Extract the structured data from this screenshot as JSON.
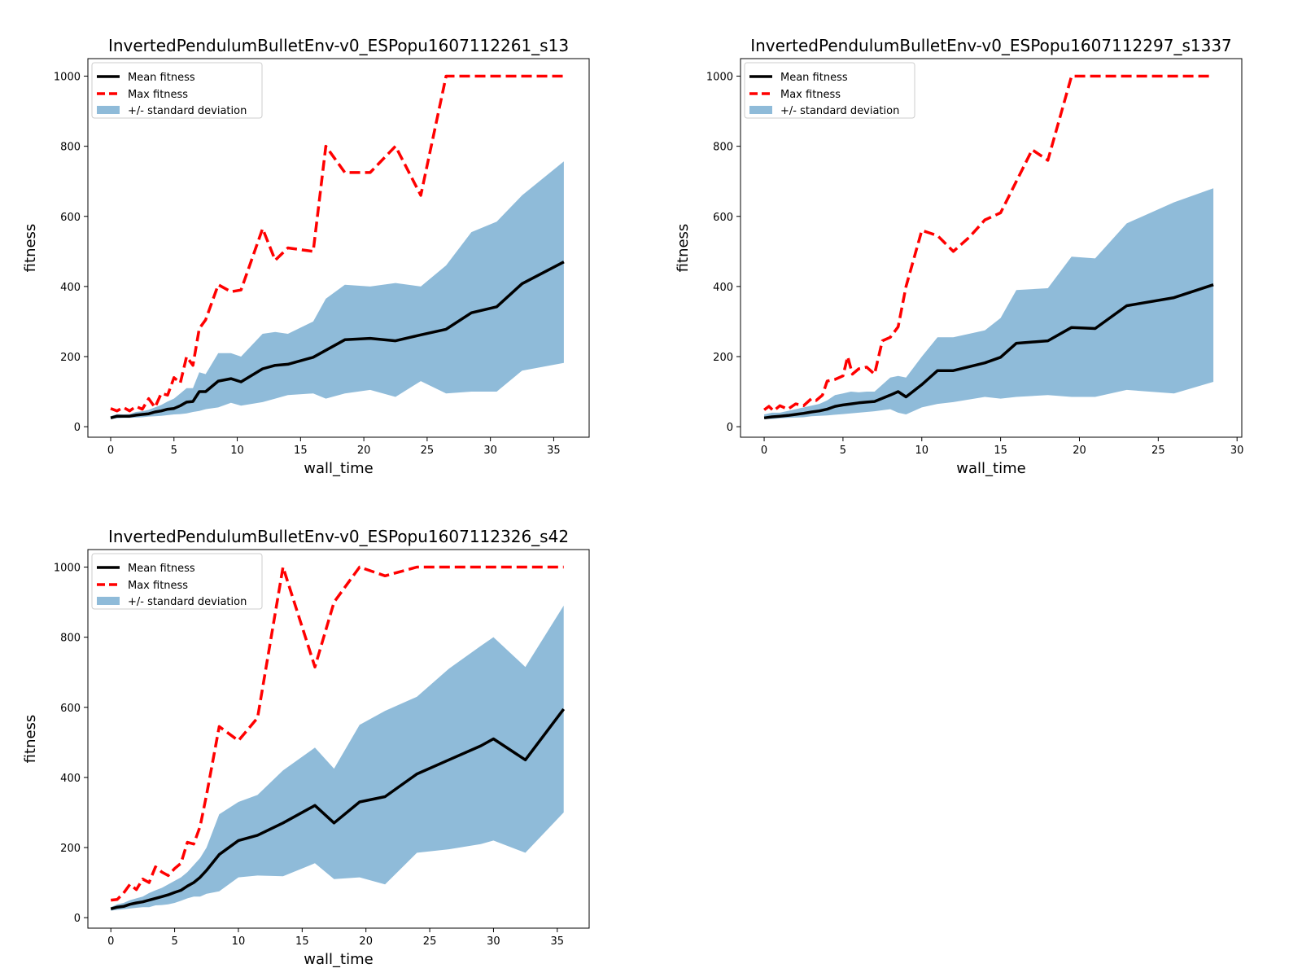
{
  "figure": {
    "layout": "2x2 grid, fourth panel empty",
    "colors": {
      "mean": "#000000",
      "max": "#ff0000",
      "band": "#1f77b4"
    }
  },
  "chart_data": [
    {
      "type": "line",
      "title": "InvertedPendulumBulletEnv-v0_ESPopu1607112261_s13",
      "xlabel": "wall_time",
      "ylabel": "fitness",
      "xlim": [
        -1.8,
        37.8
      ],
      "ylim": [
        -30,
        1050
      ],
      "xticks": [
        0,
        5,
        10,
        15,
        20,
        25,
        30,
        35
      ],
      "yticks": [
        0,
        200,
        400,
        600,
        800,
        1000
      ],
      "legend": {
        "position": "top-left",
        "entries": [
          "Mean fitness",
          "Max fitness",
          "+/- standard deviation"
        ]
      },
      "series": [
        {
          "name": "Mean fitness",
          "style": "solid",
          "x": [
            0,
            0.5,
            1,
            1.5,
            2,
            2.5,
            3,
            3.5,
            4,
            4.5,
            5,
            5.5,
            6,
            6.5,
            7,
            7.5,
            8.5,
            9.5,
            10.3,
            12,
            13,
            14,
            16,
            18.5,
            20.5,
            22.5,
            24.5,
            26.5,
            28.5,
            30.5,
            32.5,
            35.8
          ],
          "y": [
            25,
            30,
            30,
            30,
            33,
            35,
            37,
            42,
            45,
            50,
            52,
            60,
            70,
            72,
            100,
            100,
            130,
            137,
            128,
            165,
            175,
            178,
            198,
            248,
            252,
            245,
            262,
            278,
            325,
            342,
            408,
            470
          ]
        },
        {
          "name": "Max fitness",
          "style": "dashed",
          "x": [
            0,
            0.5,
            1,
            1.5,
            2,
            2.5,
            3,
            3.5,
            4,
            4.5,
            5,
            5.5,
            6,
            6.5,
            7,
            7.5,
            8.5,
            9.5,
            10.3,
            12,
            13,
            14,
            16,
            17,
            18.5,
            20.5,
            22.5,
            24.5,
            26.5,
            28.5,
            30.5,
            32.5,
            35.8
          ],
          "y": [
            52,
            45,
            55,
            45,
            58,
            50,
            80,
            55,
            95,
            90,
            140,
            125,
            200,
            175,
            280,
            305,
            405,
            385,
            390,
            565,
            475,
            510,
            500,
            800,
            725,
            725,
            800,
            660,
            1000,
            1000,
            1000,
            1000,
            1000
          ]
        },
        {
          "name": "+/- standard deviation",
          "style": "band",
          "x": [
            0,
            0.5,
            1,
            1.5,
            2,
            2.5,
            3,
            3.5,
            4,
            4.5,
            5,
            5.5,
            6,
            6.5,
            7,
            7.5,
            8.5,
            9.5,
            10.3,
            12,
            13,
            14,
            16,
            17,
            18.5,
            20.5,
            22.5,
            24.5,
            26.5,
            28.5,
            30.5,
            32.5,
            35.8
          ],
          "lower": [
            22,
            24,
            25,
            25,
            26,
            27,
            29,
            30,
            31,
            33,
            35,
            36,
            38,
            42,
            45,
            50,
            55,
            68,
            60,
            70,
            80,
            90,
            95,
            80,
            95,
            105,
            85,
            130,
            95,
            100,
            100,
            160,
            182
          ],
          "upper": [
            30,
            36,
            35,
            36,
            42,
            44,
            48,
            55,
            62,
            72,
            80,
            95,
            110,
            110,
            155,
            150,
            210,
            210,
            200,
            265,
            270,
            265,
            300,
            365,
            405,
            400,
            410,
            400,
            460,
            555,
            585,
            660,
            757
          ]
        }
      ]
    },
    {
      "type": "line",
      "title": "InvertedPendulumBulletEnv-v0_ESPopu1607112297_s1337",
      "xlabel": "wall_time",
      "ylabel": "fitness",
      "xlim": [
        -1.5,
        30.3
      ],
      "ylim": [
        -30,
        1050
      ],
      "xticks": [
        0,
        5,
        10,
        15,
        20,
        25,
        30
      ],
      "yticks": [
        0,
        200,
        400,
        600,
        800,
        1000
      ],
      "legend": {
        "position": "top-left",
        "entries": [
          "Mean fitness",
          "Max fitness",
          "+/- standard deviation"
        ]
      },
      "series": [
        {
          "name": "Mean fitness",
          "style": "solid",
          "x": [
            0,
            0.5,
            1,
            1.5,
            2,
            2.5,
            3,
            3.5,
            4,
            4.5,
            5,
            5.5,
            6,
            6.5,
            7,
            8,
            8.5,
            9,
            10,
            11,
            12,
            14,
            15,
            16,
            18,
            19.5,
            21,
            23,
            26,
            28.5
          ],
          "y": [
            25,
            28,
            30,
            32,
            35,
            38,
            42,
            45,
            50,
            58,
            62,
            65,
            68,
            70,
            72,
            90,
            100,
            85,
            120,
            160,
            160,
            182,
            198,
            238,
            245,
            283,
            280,
            345,
            368,
            405
          ]
        },
        {
          "name": "Max fitness",
          "style": "dashed",
          "x": [
            0,
            0.3,
            0.6,
            1,
            1.5,
            2,
            2.5,
            3,
            3.3,
            3.7,
            4,
            4.5,
            5,
            5.3,
            5.6,
            6,
            6.5,
            7,
            7.5,
            8,
            8.5,
            9,
            10,
            11,
            12,
            13,
            14,
            15,
            16,
            17,
            18,
            19.5,
            21,
            23,
            26,
            28.5
          ],
          "y": [
            48,
            58,
            45,
            60,
            50,
            65,
            60,
            80,
            75,
            90,
            130,
            135,
            145,
            200,
            150,
            165,
            170,
            150,
            245,
            255,
            285,
            400,
            560,
            545,
            500,
            540,
            590,
            610,
            700,
            790,
            760,
            1000,
            1000,
            1000,
            1000,
            1000
          ]
        },
        {
          "name": "+/- standard deviation",
          "style": "band",
          "x": [
            0,
            0.5,
            1,
            1.5,
            2,
            2.5,
            3,
            3.5,
            4,
            4.5,
            5,
            5.5,
            6,
            6.5,
            7,
            8,
            8.5,
            9,
            10,
            11,
            12,
            14,
            15,
            16,
            18,
            19.5,
            21,
            23,
            26,
            28.5
          ],
          "lower": [
            22,
            22,
            24,
            25,
            26,
            27,
            30,
            31,
            32,
            34,
            36,
            38,
            40,
            42,
            44,
            50,
            40,
            35,
            55,
            65,
            70,
            85,
            80,
            85,
            90,
            85,
            85,
            105,
            95,
            128
          ],
          "upper": [
            35,
            40,
            40,
            45,
            50,
            55,
            60,
            65,
            75,
            90,
            95,
            100,
            98,
            100,
            100,
            140,
            145,
            140,
            200,
            255,
            255,
            275,
            310,
            390,
            395,
            485,
            480,
            580,
            640,
            680
          ]
        }
      ]
    },
    {
      "type": "line",
      "title": "InvertedPendulumBulletEnv-v0_ESPopu1607112326_s42",
      "xlabel": "wall_time",
      "ylabel": "fitness",
      "xlim": [
        -1.8,
        37.5
      ],
      "ylim": [
        -30,
        1050
      ],
      "xticks": [
        0,
        5,
        10,
        15,
        20,
        25,
        30,
        35
      ],
      "yticks": [
        0,
        200,
        400,
        600,
        800,
        1000
      ],
      "legend": {
        "position": "top-left",
        "entries": [
          "Mean fitness",
          "Max fitness",
          "+/- standard deviation"
        ]
      },
      "series": [
        {
          "name": "Mean fitness",
          "style": "solid",
          "x": [
            0,
            0.5,
            1,
            1.5,
            2,
            2.5,
            3,
            3.5,
            4,
            4.5,
            5,
            5.5,
            6,
            6.5,
            7,
            7.5,
            8.5,
            10,
            11.5,
            13.5,
            16,
            17.5,
            19.5,
            21.5,
            24,
            26.5,
            29,
            30,
            32.5,
            35.5
          ],
          "y": [
            25,
            30,
            32,
            38,
            42,
            45,
            50,
            55,
            60,
            65,
            72,
            78,
            90,
            100,
            115,
            135,
            180,
            220,
            235,
            270,
            320,
            270,
            330,
            345,
            410,
            450,
            490,
            510,
            450,
            595
          ]
        },
        {
          "name": "Max fitness",
          "style": "dashed",
          "x": [
            0,
            0.5,
            1,
            1.5,
            2,
            2.5,
            3,
            3.5,
            4,
            4.5,
            5,
            5.5,
            6,
            6.5,
            7,
            7.5,
            8.5,
            10,
            11.5,
            13.5,
            16,
            17.5,
            19.5,
            21.5,
            24,
            26.5,
            29,
            32.5,
            35.5
          ],
          "y": [
            50,
            52,
            70,
            95,
            80,
            110,
            100,
            145,
            130,
            120,
            140,
            155,
            215,
            210,
            260,
            350,
            545,
            505,
            570,
            1000,
            715,
            900,
            1000,
            975,
            1000,
            1000,
            1000,
            1000,
            1000
          ]
        },
        {
          "name": "+/- standard deviation",
          "style": "band",
          "x": [
            0,
            0.5,
            1,
            1.5,
            2,
            2.5,
            3,
            3.5,
            4,
            4.5,
            5,
            5.5,
            6,
            6.5,
            7,
            7.5,
            8.5,
            10,
            11.5,
            13.5,
            16,
            17.5,
            19.5,
            21.5,
            24,
            26.5,
            29,
            30,
            32.5,
            35.5
          ],
          "lower": [
            20,
            22,
            24,
            26,
            28,
            30,
            30,
            35,
            36,
            38,
            42,
            48,
            55,
            60,
            60,
            68,
            75,
            115,
            120,
            118,
            155,
            110,
            115,
            95,
            185,
            195,
            210,
            220,
            185,
            300
          ],
          "upper": [
            30,
            38,
            42,
            50,
            55,
            60,
            70,
            78,
            85,
            95,
            105,
            115,
            130,
            150,
            170,
            200,
            295,
            330,
            350,
            420,
            485,
            425,
            550,
            590,
            630,
            710,
            775,
            800,
            715,
            890
          ]
        }
      ]
    }
  ]
}
